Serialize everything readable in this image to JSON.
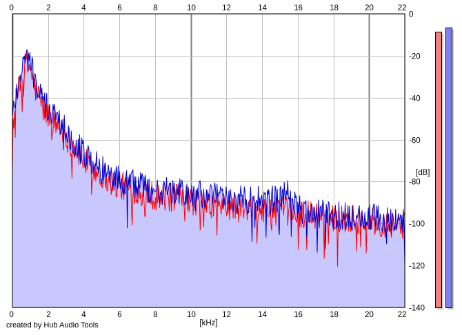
{
  "chart_data": {
    "type": "area",
    "title": "",
    "xlabel": "[kHz]",
    "ylabel": "[dB]",
    "xlim": [
      0,
      22
    ],
    "ylim": [
      -140,
      0
    ],
    "x_ticks": [
      0,
      2,
      4,
      6,
      8,
      10,
      12,
      14,
      16,
      18,
      20,
      22
    ],
    "y_ticks": [
      0,
      -20,
      -40,
      -60,
      -80,
      -100,
      -120,
      -140
    ],
    "y_tick_labels": [
      "0",
      "-20",
      "-40",
      "-60",
      "-80",
      "-100",
      "-120",
      "-140"
    ],
    "grid": true,
    "colors": {
      "red_series": "#ff0000",
      "blue_series": "#0000d0",
      "fill": "#c8c8ff",
      "grid_minor": "#c0c0c0",
      "grid_major": "#808080",
      "red_meter": "#f08080",
      "blue_meter": "#8080f0"
    },
    "series": [
      {
        "color": "red",
        "x": [
          0.0,
          0.2,
          0.4,
          0.6,
          0.8,
          1.0,
          1.2,
          1.5,
          1.8,
          2.0,
          2.5,
          3.0,
          3.5,
          4.0,
          4.5,
          5.0,
          5.5,
          6.0,
          7.0,
          8.0,
          9.0,
          10.0,
          11.0,
          12.0,
          13.0,
          14.0,
          15.0,
          16.0,
          17.0,
          18.0,
          19.0,
          20.0,
          21.0,
          22.0
        ],
        "values": [
          -54,
          -42,
          -35,
          -28,
          -23,
          -26,
          -34,
          -40,
          -47,
          -48,
          -53,
          -58,
          -64,
          -70,
          -74,
          -77,
          -80,
          -82,
          -84,
          -87,
          -88,
          -89,
          -91,
          -92,
          -93,
          -94,
          -94,
          -95,
          -96,
          -97,
          -98,
          -99,
          -100,
          -101
        ]
      },
      {
        "color": "blue",
        "x": [
          0.0,
          0.2,
          0.4,
          0.6,
          0.8,
          1.0,
          1.2,
          1.5,
          1.8,
          2.0,
          2.5,
          3.0,
          3.5,
          4.0,
          4.5,
          5.0,
          5.5,
          6.0,
          7.0,
          8.0,
          9.0,
          10.0,
          11.0,
          12.0,
          13.0,
          14.0,
          15.0,
          15.3,
          16.0,
          17.0,
          18.0,
          19.0,
          20.0,
          21.0,
          22.0
        ],
        "values": [
          -50,
          -38,
          -30,
          -24,
          -21,
          -22,
          -30,
          -38,
          -44,
          -45,
          -50,
          -55,
          -61,
          -67,
          -71,
          -74,
          -77,
          -79,
          -82,
          -84,
          -85,
          -86,
          -87,
          -88,
          -89,
          -89,
          -89,
          -84,
          -93,
          -95,
          -96,
          -97,
          -97,
          -98,
          -99
        ]
      }
    ],
    "level_meters": [
      {
        "color": "red",
        "value_db": -8
      },
      {
        "color": "blue",
        "value_db": -6
      }
    ]
  },
  "footer": {
    "text": "created by Hub Audio Tools"
  }
}
